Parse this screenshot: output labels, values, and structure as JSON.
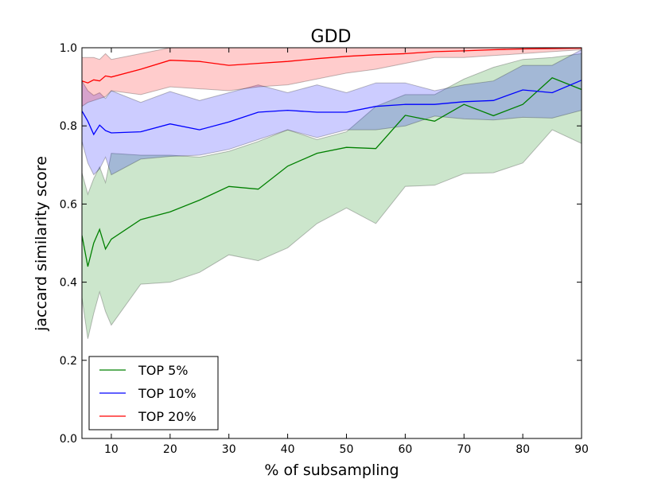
{
  "chart_data": {
    "type": "line",
    "title": "GDD",
    "xlabel": "% of subsampling",
    "ylabel": "jaccard similarity score",
    "xlim": [
      5,
      90
    ],
    "ylim": [
      0.0,
      1.0
    ],
    "xticks": [
      10,
      20,
      30,
      40,
      50,
      60,
      70,
      80,
      90
    ],
    "yticks": [
      0.0,
      0.2,
      0.4,
      0.6,
      0.8,
      1.0
    ],
    "xtick_labels": [
      "10",
      "20",
      "30",
      "40",
      "50",
      "60",
      "70",
      "80",
      "90"
    ],
    "ytick_labels": [
      "0.0",
      "0.2",
      "0.4",
      "0.6",
      "0.8",
      "1.0"
    ],
    "grid": false,
    "legend_position": "lower-left",
    "x": [
      5,
      6,
      7,
      8,
      9,
      10,
      15,
      20,
      25,
      30,
      35,
      40,
      45,
      50,
      55,
      60,
      65,
      70,
      75,
      80,
      85,
      90
    ],
    "series": [
      {
        "name": "TOP 5%",
        "color": "#008000",
        "fill": "#008000",
        "mean": [
          0.52,
          0.44,
          0.5,
          0.535,
          0.485,
          0.51,
          0.56,
          0.58,
          0.61,
          0.645,
          0.638,
          0.697,
          0.73,
          0.745,
          0.742,
          0.827,
          0.812,
          0.855,
          0.826,
          0.855,
          0.923,
          0.893
        ],
        "lower": [
          0.36,
          0.255,
          0.32,
          0.375,
          0.325,
          0.29,
          0.395,
          0.4,
          0.425,
          0.47,
          0.455,
          0.488,
          0.55,
          0.59,
          0.55,
          0.645,
          0.648,
          0.678,
          0.68,
          0.705,
          0.79,
          0.755
        ],
        "upper": [
          0.68,
          0.625,
          0.665,
          0.695,
          0.655,
          0.73,
          0.725,
          0.725,
          0.72,
          0.735,
          0.76,
          0.79,
          0.765,
          0.785,
          0.85,
          0.88,
          0.88,
          0.92,
          0.95,
          0.97,
          0.975,
          0.985
        ]
      },
      {
        "name": "TOP 10%",
        "color": "#0000ff",
        "fill": "#0000ff",
        "mean": [
          0.838,
          0.812,
          0.778,
          0.802,
          0.788,
          0.782,
          0.785,
          0.805,
          0.79,
          0.81,
          0.835,
          0.84,
          0.835,
          0.835,
          0.85,
          0.855,
          0.855,
          0.862,
          0.865,
          0.892,
          0.885,
          0.917
        ],
        "lower": [
          0.76,
          0.705,
          0.675,
          0.69,
          0.72,
          0.675,
          0.715,
          0.722,
          0.725,
          0.74,
          0.765,
          0.79,
          0.77,
          0.79,
          0.79,
          0.8,
          0.825,
          0.818,
          0.815,
          0.822,
          0.82,
          0.84
        ],
        "upper": [
          0.915,
          0.89,
          0.878,
          0.885,
          0.87,
          0.89,
          0.86,
          0.888,
          0.865,
          0.885,
          0.905,
          0.885,
          0.905,
          0.885,
          0.91,
          0.91,
          0.89,
          0.905,
          0.915,
          0.955,
          0.955,
          0.995
        ]
      },
      {
        "name": "TOP 20%",
        "color": "#ff0000",
        "fill": "#ff0000",
        "mean": [
          0.915,
          0.91,
          0.918,
          0.915,
          0.928,
          0.925,
          0.945,
          0.968,
          0.965,
          0.955,
          0.96,
          0.965,
          0.972,
          0.978,
          0.982,
          0.985,
          0.99,
          0.992,
          0.995,
          0.997,
          0.998,
          0.999
        ],
        "lower": [
          0.85,
          0.86,
          0.865,
          0.87,
          0.875,
          0.89,
          0.88,
          0.9,
          0.895,
          0.89,
          0.9,
          0.905,
          0.92,
          0.935,
          0.945,
          0.96,
          0.975,
          0.975,
          0.98,
          0.985,
          0.99,
          0.995
        ],
        "upper": [
          0.975,
          0.975,
          0.975,
          0.97,
          0.985,
          0.97,
          0.985,
          1.0,
          1.0,
          1.0,
          1.0,
          1.0,
          1.0,
          1.0,
          1.0,
          1.0,
          1.0,
          1.0,
          1.0,
          1.0,
          1.0,
          1.0
        ]
      }
    ]
  }
}
